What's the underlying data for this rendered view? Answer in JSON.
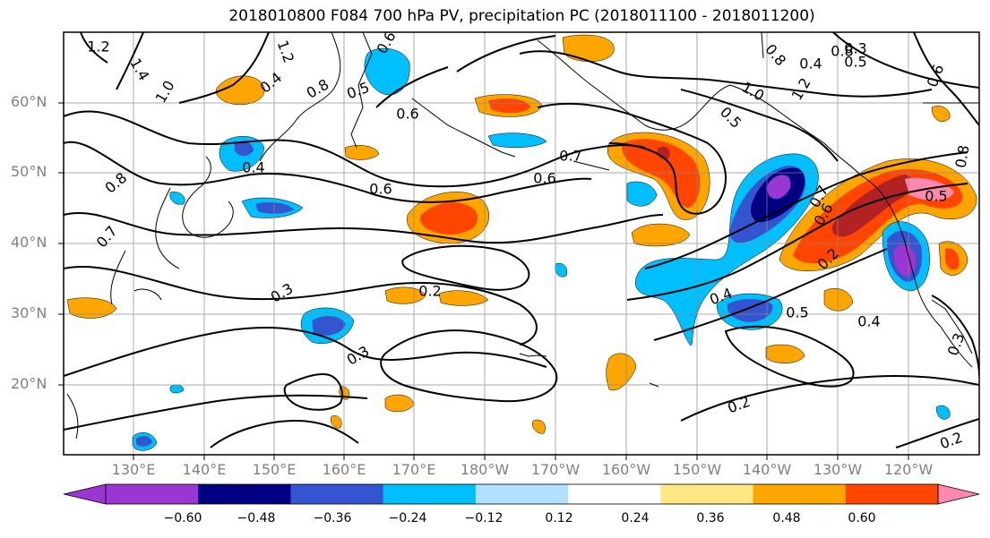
{
  "title": "2018010800 F084 700 hPa PV, precipitation PC (2018011100 - 2018011200)",
  "lat_labels": [
    "60°N",
    "50°N",
    "40°N",
    "30°N",
    "20°N"
  ],
  "lon_labels": [
    "130°E",
    "140°E",
    "150°E",
    "160°E",
    "170°E",
    "180°W",
    "170°W",
    "160°W",
    "150°W",
    "140°W",
    "130°W",
    "120°W"
  ],
  "colorbar": {
    "ticks": [
      "−0.60",
      "−0.48",
      "−0.36",
      "−0.24",
      "−0.12",
      "0.12",
      "0.24",
      "0.36",
      "0.48",
      "0.60"
    ],
    "colors": [
      "#9a36d2",
      "#000080",
      "#3555d0",
      "#00bfff",
      "#b0e2ff",
      "#ffffff",
      "#ffe784",
      "#ffa500",
      "#ff4500",
      "#b22222",
      "#ff88b0"
    ]
  },
  "contour_labels": [
    "1.2",
    "1.4",
    "1.0",
    "1.2",
    "0.4",
    "0.8",
    "0.6",
    "0.5",
    "0.6",
    "0.4",
    "0.8",
    "0.7",
    "0.8",
    "0.5",
    "0.3",
    "0.8",
    "0.4",
    "1.0",
    "1.2",
    "0.5",
    "0.7",
    "0.6",
    "0.6",
    "0.7",
    "0.6",
    "0.5",
    "0.2",
    "0.3",
    "0.2",
    "0.4",
    "0.5",
    "0.4",
    "0.3",
    "0.2",
    "0.2",
    "0.6",
    "0.3",
    "0.8"
  ]
}
